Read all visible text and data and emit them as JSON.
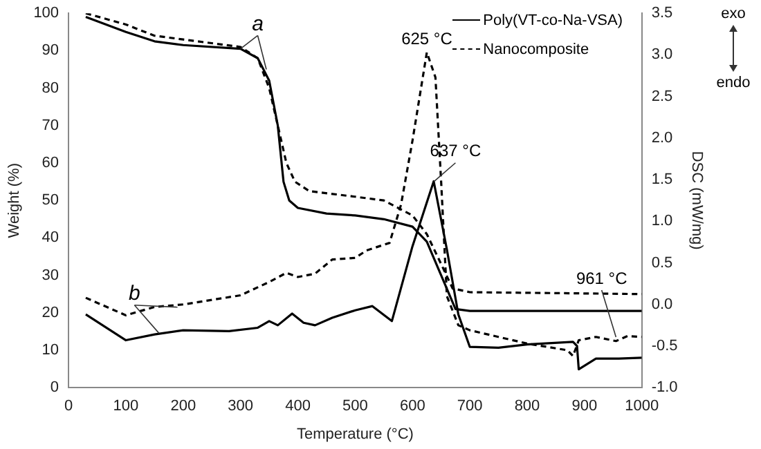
{
  "chart_data": {
    "type": "line",
    "xlabel": "Temperature (°C)",
    "ylabel": "Weight (%)",
    "y2label": "DSC (mW/mg)",
    "xlim": [
      0,
      1000
    ],
    "xticks": [
      0,
      100,
      200,
      300,
      400,
      500,
      600,
      700,
      800,
      900,
      1000
    ],
    "ylim": [
      0,
      100
    ],
    "yticks": [
      0,
      10,
      20,
      30,
      40,
      50,
      60,
      70,
      80,
      90,
      100
    ],
    "y2lim": [
      -1,
      3.5
    ],
    "y2ticks": [
      {
        "value": -1,
        "label": "-1.0"
      },
      -0.5,
      {
        "value": 0,
        "label": "0.0"
      },
      0.5,
      {
        "value": 1,
        "label": "1.0"
      },
      1.5,
      {
        "value": 2,
        "label": "2.0"
      },
      2.5,
      {
        "value": 3,
        "label": "3.0"
      },
      3.5
    ],
    "grid": false,
    "legend": "top right",
    "marker": "none",
    "annotations": [
      {
        "text": "a",
        "x": 300,
        "y": 90.5
      },
      {
        "text": "b",
        "x": 190,
        "y": 21.5
      },
      {
        "text": "625 °C",
        "x": 625,
        "y": 90
      },
      {
        "text": "637 °C",
        "x": 637,
        "y": 55
      },
      {
        "text": "961 °C",
        "x": 955,
        "y": 13.5
      },
      "exo",
      "endo"
    ],
    "series": [
      {
        "name": "Poly(VT-co-Na-VSA)",
        "color": "#000000",
        "line_style": "solid",
        "x": [
          30,
          100,
          150,
          200,
          300,
          330,
          350,
          365,
          375,
          385,
          400,
          450,
          500,
          550,
          600,
          625,
          650,
          675,
          700,
          1000
        ],
        "values": [
          99,
          95,
          92.5,
          91.5,
          90.5,
          88,
          82,
          70,
          55,
          50,
          48,
          46.5,
          46,
          45,
          43,
          39,
          30,
          21,
          20.5,
          20.5
        ]
      },
      {
        "name": "Nanocomposite",
        "color": "#000000",
        "line_style": "dashed",
        "x": [
          30,
          100,
          150,
          200,
          300,
          330,
          350,
          365,
          380,
          395,
          420,
          500,
          550,
          600,
          625,
          650,
          670,
          700,
          1000
        ],
        "values": [
          100,
          97,
          94,
          93,
          91,
          88,
          80,
          70,
          60,
          55,
          52.5,
          51,
          50,
          46,
          41,
          33,
          26.5,
          25.5,
          25
        ]
      },
      {
        "color": "#000000",
        "line_style": "solid",
        "axis": "y2",
        "x": [
          30,
          100,
          150,
          200,
          280,
          330,
          350,
          365,
          390,
          410,
          430,
          460,
          500,
          530,
          564,
          600,
          637,
          660,
          680,
          700,
          750,
          800,
          880,
          887,
          890,
          920,
          960,
          1000
        ],
        "values": [
          -0.12,
          -0.43,
          -0.36,
          -0.31,
          -0.32,
          -0.28,
          -0.2,
          -0.25,
          -0.11,
          -0.22,
          -0.25,
          -0.16,
          -0.07,
          -0.02,
          -0.2,
          0.7,
          1.48,
          0.66,
          -0.12,
          -0.51,
          -0.52,
          -0.48,
          -0.45,
          -0.5,
          -0.78,
          -0.65,
          -0.65,
          -0.64
        ]
      },
      {
        "color": "#000000",
        "line_style": "dashed",
        "axis": "y2",
        "x": [
          30,
          100,
          150,
          200,
          300,
          350,
          380,
          400,
          430,
          460,
          500,
          520,
          560,
          580,
          600,
          625,
          640,
          650,
          660,
          680,
          700,
          750,
          800,
          870,
          880,
          890,
          920,
          955,
          975,
          1000
        ],
        "values": [
          0.08,
          -0.13,
          -0.03,
          0,
          0.11,
          0.27,
          0.38,
          0.33,
          0.37,
          0.54,
          0.56,
          0.65,
          0.74,
          1.2,
          1.97,
          3.03,
          2.73,
          1.47,
          0.1,
          -0.25,
          -0.31,
          -0.39,
          -0.47,
          -0.55,
          -0.62,
          -0.43,
          -0.39,
          -0.44,
          -0.38,
          -0.39
        ]
      }
    ]
  }
}
